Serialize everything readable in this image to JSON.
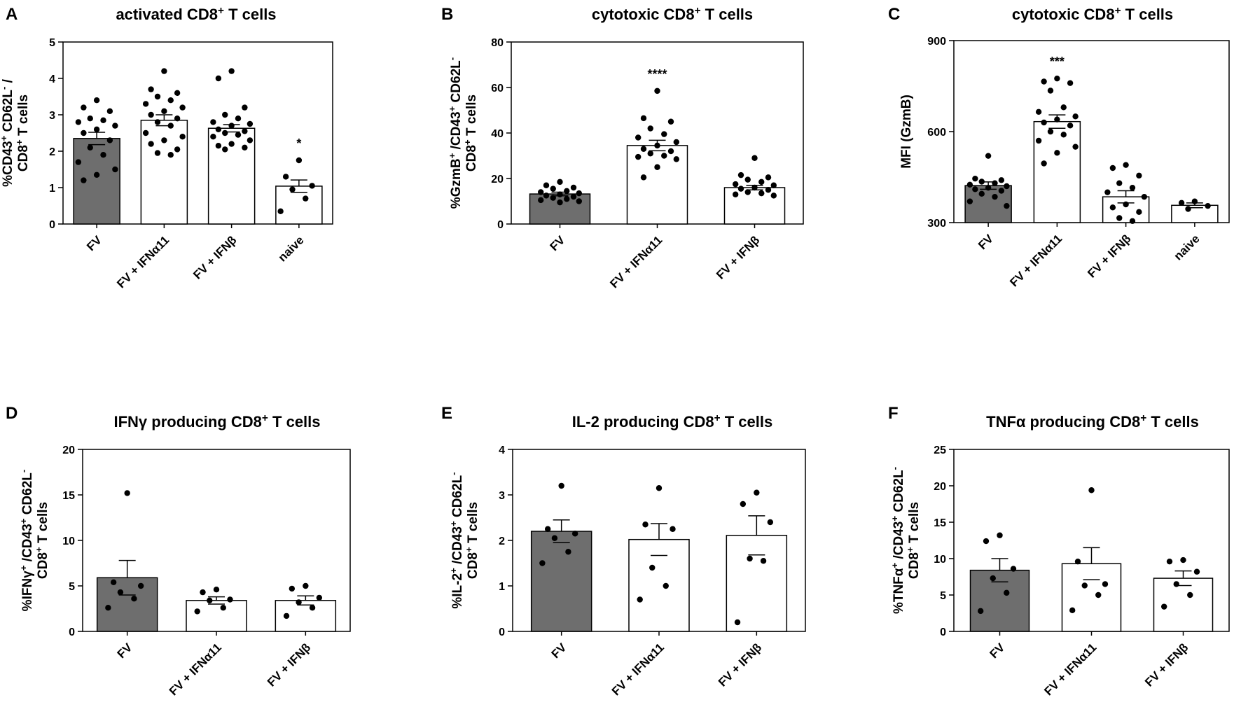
{
  "chart_data": [
    {
      "type": "bar",
      "panel_label": "A",
      "title": "activated CD8+ T cells",
      "ylabel": "%CD43+ CD62L- / CD8+ T cells",
      "ylim": [
        0,
        5
      ],
      "yticks": [
        "0",
        "1",
        "2",
        "3",
        "4",
        "5"
      ],
      "categories": [
        "FV",
        "FV + IFNα11",
        "FV + IFNβ",
        "naive"
      ],
      "values": [
        2.35,
        2.85,
        2.63,
        1.04
      ],
      "sem": [
        0.17,
        0.15,
        0.1,
        0.17
      ],
      "significance": [
        "",
        "",
        "",
        "*"
      ],
      "points": [
        [
          3.4,
          3.2,
          3.1,
          2.9,
          2.85,
          2.8,
          2.7,
          2.6,
          2.5,
          2.3,
          2.1,
          1.9,
          1.7,
          1.5,
          1.35,
          1.2
        ],
        [
          4.2,
          3.7,
          3.6,
          3.5,
          3.4,
          3.3,
          3.2,
          3.1,
          3.0,
          2.9,
          2.8,
          2.7,
          2.5,
          2.4,
          2.3,
          2.2,
          2.05,
          1.95,
          1.9
        ],
        [
          4.2,
          4.0,
          3.2,
          3.0,
          2.9,
          2.8,
          2.75,
          2.7,
          2.6,
          2.55,
          2.5,
          2.45,
          2.4,
          2.3,
          2.2,
          2.15,
          2.1,
          2.05
        ],
        [
          1.75,
          1.3,
          1.05,
          0.95,
          0.7,
          0.35
        ]
      ]
    },
    {
      "type": "bar",
      "panel_label": "B",
      "title": "cytotoxic CD8+ T cells",
      "ylabel": "%GzmB+ /CD43+ CD62L- CD8+ T cells",
      "ylim": [
        0,
        80
      ],
      "yticks": [
        "0",
        "20",
        "40",
        "60",
        "80"
      ],
      "categories": [
        "FV",
        "FV + IFNα11",
        "FV + IFNβ"
      ],
      "values": [
        13.2,
        34.5,
        16.0
      ],
      "sem": [
        0.8,
        2.3,
        1.0
      ],
      "significance": [
        "",
        "****",
        ""
      ],
      "points": [
        [
          18.5,
          17.0,
          16.0,
          15.5,
          14.5,
          14.0,
          13.5,
          13.0,
          12.5,
          12.0,
          11.5,
          11.0,
          10.5,
          10.0,
          9.5
        ],
        [
          58.5,
          46.5,
          45.0,
          42.0,
          39.5,
          38.0,
          36.0,
          34.5,
          33.0,
          32.0,
          31.0,
          30.0,
          29.5,
          28.5,
          25.0,
          20.5
        ],
        [
          29.0,
          21.5,
          20.5,
          19.5,
          18.5,
          17.5,
          17.0,
          16.0,
          15.5,
          15.0,
          14.0,
          13.5,
          13.0,
          12.5
        ]
      ]
    },
    {
      "type": "bar",
      "panel_label": "C",
      "title": "cytotoxic CD8+ T cells",
      "ylabel": "MFI (GzmB)",
      "ylim": [
        300,
        900
      ],
      "yticks": [
        "300",
        "600",
        "900"
      ],
      "categories": [
        "FV",
        "FV + IFNα11",
        "FV + IFNβ",
        "naive"
      ],
      "values": [
        422,
        633,
        385,
        357
      ],
      "sem": [
        12,
        22,
        20,
        8
      ],
      "significance": [
        "",
        "***",
        "",
        ""
      ],
      "points": [
        [
          520,
          445,
          440,
          435,
          430,
          425,
          420,
          415,
          410,
          405,
          395,
          385,
          370,
          355
        ],
        [
          775,
          765,
          760,
          735,
          680,
          665,
          650,
          640,
          630,
          620,
          600,
          590,
          570,
          550,
          530,
          495
        ],
        [
          490,
          480,
          455,
          430,
          415,
          400,
          385,
          360,
          350,
          335,
          315,
          305
        ],
        [
          370,
          365,
          355,
          345
        ]
      ]
    },
    {
      "type": "bar",
      "panel_label": "D",
      "title": "IFNγ producing CD8+ T cells",
      "ylabel": "%IFNγ+ /CD43+ CD62L- CD8+ T cells",
      "ylim": [
        0,
        20
      ],
      "yticks": [
        "0",
        "5",
        "10",
        "15",
        "20"
      ],
      "categories": [
        "FV",
        "FV + IFNα11",
        "FV + IFNβ"
      ],
      "values": [
        5.9,
        3.4,
        3.4
      ],
      "sem": [
        1.9,
        0.4,
        0.5
      ],
      "significance": [
        "",
        "",
        ""
      ],
      "points": [
        [
          15.2,
          5.4,
          5.0,
          4.3,
          3.6,
          2.6
        ],
        [
          4.6,
          4.3,
          3.5,
          3.4,
          2.6,
          2.2
        ],
        [
          5.0,
          4.7,
          3.7,
          3.2,
          2.6,
          1.7
        ]
      ]
    },
    {
      "type": "bar",
      "panel_label": "E",
      "title": "IL-2 producing CD8+ T cells",
      "ylabel": "%IL-2+ /CD43+ CD62L- CD8+ T cells",
      "ylim": [
        0,
        4
      ],
      "yticks": [
        "0",
        "1",
        "2",
        "3",
        "4"
      ],
      "categories": [
        "FV",
        "FV + IFNα11",
        "FV + IFNβ"
      ],
      "values": [
        2.2,
        2.02,
        2.11
      ],
      "sem": [
        0.25,
        0.35,
        0.43
      ],
      "significance": [
        "",
        "",
        ""
      ],
      "points": [
        [
          3.2,
          2.25,
          2.15,
          2.05,
          1.75,
          1.5
        ],
        [
          3.15,
          2.35,
          2.25,
          1.4,
          1.0,
          0.7
        ],
        [
          3.05,
          2.8,
          2.4,
          1.6,
          1.55,
          0.2
        ]
      ]
    },
    {
      "type": "bar",
      "panel_label": "F",
      "title": "TNFα producing CD8+ T cells",
      "ylabel": "%TNFα+ /CD43+ CD62L- CD8+ T cells",
      "ylim": [
        0,
        25
      ],
      "yticks": [
        "0",
        "5",
        "10",
        "15",
        "20",
        "25"
      ],
      "categories": [
        "FV",
        "FV + IFNα11",
        "FV + IFNβ"
      ],
      "values": [
        8.4,
        9.3,
        7.3
      ],
      "sem": [
        1.6,
        2.2,
        1.0
      ],
      "significance": [
        "",
        "",
        ""
      ],
      "points": [
        [
          13.2,
          12.4,
          8.6,
          7.3,
          5.3,
          2.8
        ],
        [
          19.4,
          9.6,
          6.5,
          6.3,
          5.0,
          2.9
        ],
        [
          9.8,
          9.6,
          8.2,
          6.5,
          5.0,
          3.4
        ]
      ]
    }
  ]
}
